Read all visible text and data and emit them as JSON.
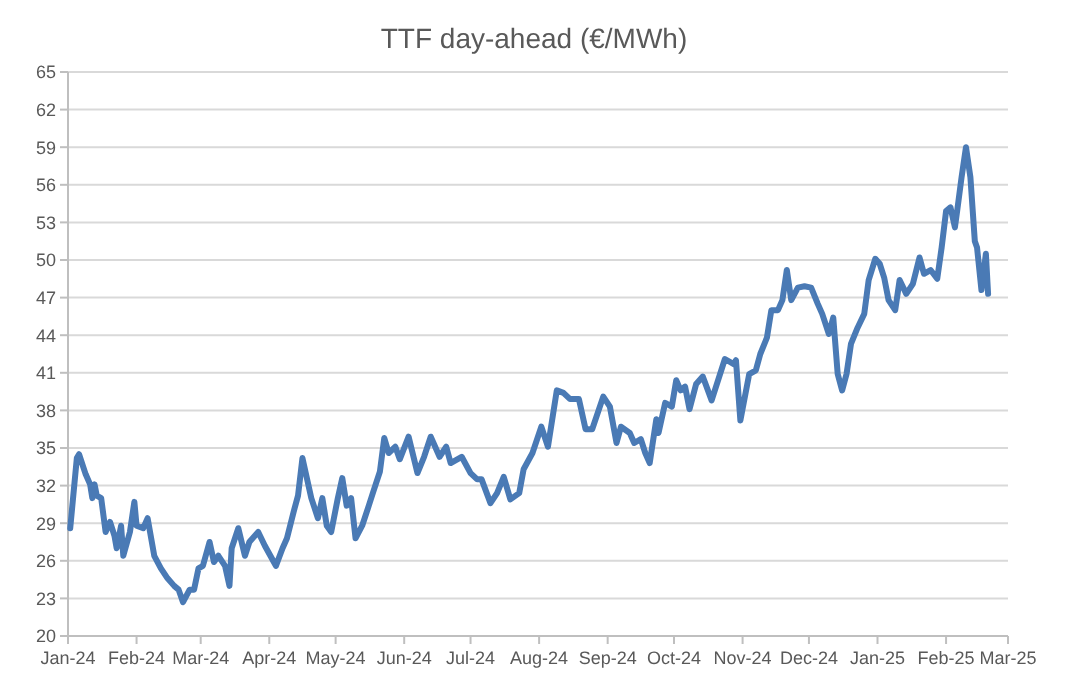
{
  "chart_data": {
    "type": "line",
    "title": "TTF day-ahead (€/MWh)",
    "x": [
      "2024-01-02",
      "2024-01-05",
      "2024-01-06",
      "2024-01-09",
      "2024-01-11",
      "2024-01-12",
      "2024-01-13",
      "2024-01-14",
      "2024-01-16",
      "2024-01-18",
      "2024-01-20",
      "2024-01-22",
      "2024-01-23",
      "2024-01-25",
      "2024-01-26",
      "2024-01-29",
      "2024-01-31",
      "2024-02-01",
      "2024-02-04",
      "2024-02-06",
      "2024-02-09",
      "2024-02-12",
      "2024-02-15",
      "2024-02-18",
      "2024-02-20",
      "2024-02-22",
      "2024-02-25",
      "2024-02-27",
      "2024-02-29",
      "2024-03-02",
      "2024-03-05",
      "2024-03-07",
      "2024-03-09",
      "2024-03-12",
      "2024-03-14",
      "2024-03-15",
      "2024-03-18",
      "2024-03-21",
      "2024-03-23",
      "2024-03-27",
      "2024-03-30",
      "2024-04-04",
      "2024-04-07",
      "2024-04-09",
      "2024-04-12",
      "2024-04-14",
      "2024-04-16",
      "2024-04-18",
      "2024-04-20",
      "2024-04-23",
      "2024-04-25",
      "2024-04-27",
      "2024-04-29",
      "2024-05-02",
      "2024-05-04",
      "2024-05-06",
      "2024-05-08",
      "2024-05-10",
      "2024-05-13",
      "2024-05-16",
      "2024-05-18",
      "2024-05-21",
      "2024-05-23",
      "2024-05-25",
      "2024-05-28",
      "2024-05-30",
      "2024-06-03",
      "2024-06-07",
      "2024-06-10",
      "2024-06-13",
      "2024-06-17",
      "2024-06-20",
      "2024-06-22",
      "2024-06-27",
      "2024-07-01",
      "2024-07-04",
      "2024-07-06",
      "2024-07-10",
      "2024-07-13",
      "2024-07-16",
      "2024-07-19",
      "2024-07-23",
      "2024-07-25",
      "2024-07-29",
      "2024-08-02",
      "2024-08-05",
      "2024-08-09",
      "2024-08-12",
      "2024-08-15",
      "2024-08-19",
      "2024-08-22",
      "2024-08-25",
      "2024-08-30",
      "2024-09-02",
      "2024-09-05",
      "2024-09-07",
      "2024-09-11",
      "2024-09-13",
      "2024-09-16",
      "2024-09-18",
      "2024-09-20",
      "2024-09-23",
      "2024-09-24",
      "2024-09-27",
      "2024-09-30",
      "2024-10-02",
      "2024-10-04",
      "2024-10-06",
      "2024-10-08",
      "2024-10-11",
      "2024-10-14",
      "2024-10-18",
      "2024-10-24",
      "2024-10-28",
      "2024-10-29",
      "2024-10-31",
      "2024-11-04",
      "2024-11-07",
      "2024-11-09",
      "2024-11-12",
      "2024-11-14",
      "2024-11-17",
      "2024-11-19",
      "2024-11-21",
      "2024-11-23",
      "2024-11-26",
      "2024-11-29",
      "2024-12-02",
      "2024-12-05",
      "2024-12-07",
      "2024-12-10",
      "2024-12-12",
      "2024-12-14",
      "2024-12-16",
      "2024-12-18",
      "2024-12-20",
      "2024-12-23",
      "2024-12-26",
      "2024-12-28",
      "2024-12-31",
      "2025-01-02",
      "2025-01-04",
      "2025-01-06",
      "2025-01-09",
      "2025-01-11",
      "2025-01-14",
      "2025-01-17",
      "2025-01-20",
      "2025-01-22",
      "2025-01-25",
      "2025-01-28",
      "2025-01-30",
      "2025-02-01",
      "2025-02-03",
      "2025-02-05",
      "2025-02-06",
      "2025-02-08",
      "2025-02-10",
      "2025-02-12",
      "2025-02-14",
      "2025-02-15",
      "2025-02-17",
      "2025-02-19",
      "2025-02-20"
    ],
    "series": [
      {
        "color": "#4a7ab5",
        "values": [
          28.6,
          34.2,
          34.5,
          32.9,
          32.1,
          31.0,
          32.1,
          31.2,
          31,
          28.3,
          29.1,
          28,
          27,
          28.8,
          26.4,
          28.3,
          30.7,
          28.8,
          28.6,
          29.4,
          26.4,
          25.4,
          24.6,
          24,
          23.7,
          22.7,
          23.7,
          23.7,
          25.4,
          25.6,
          27.5,
          25.9,
          26.4,
          25.6,
          24,
          27,
          28.6,
          26.4,
          27.5,
          28.3,
          27.2,
          25.6,
          27,
          27.8,
          29.9,
          31.2,
          34.2,
          32.6,
          31,
          29.4,
          31,
          28.8,
          28.3,
          31,
          32.6,
          30.4,
          31,
          27.8,
          28.8,
          30.4,
          31.5,
          33.1,
          35.8,
          34.6,
          35.1,
          34.1,
          35.9,
          33,
          34.3,
          35.9,
          34.3,
          35.1,
          33.8,
          34.3,
          33,
          32.5,
          32.5,
          30.6,
          31.4,
          32.7,
          30.9,
          31.4,
          33.3,
          34.6,
          36.7,
          35.1,
          39.6,
          39.4,
          38.9,
          38.9,
          36.5,
          36.5,
          39.1,
          38.3,
          35.4,
          36.7,
          36.2,
          35.4,
          35.7,
          34.6,
          33.8,
          37.3,
          36.2,
          38.6,
          38.3,
          40.4,
          39.6,
          39.9,
          38.1,
          40.1,
          40.7,
          38.8,
          42.1,
          41.7,
          42,
          37.2,
          40.9,
          41.2,
          42.5,
          43.8,
          46,
          46,
          46.8,
          49.2,
          46.8,
          47.8,
          47.9,
          47.8,
          46.5,
          45.7,
          44.1,
          45.4,
          40.9,
          39.6,
          40.9,
          43.3,
          44.6,
          45.7,
          48.4,
          50.1,
          49.7,
          48.6,
          46.8,
          46,
          48.4,
          47.3,
          48.1,
          50.2,
          48.9,
          49.2,
          48.5,
          51,
          53.9,
          54.2,
          52.6,
          53.9,
          56.6,
          59,
          56.6,
          51.5,
          51,
          47.6,
          50.5,
          47.3
        ]
      }
    ],
    "xlim": [
      "2024-01-01",
      "2025-03-01"
    ],
    "xticks": [
      {
        "value": "2024-01-01",
        "label": "Jan-24"
      },
      {
        "value": "2024-02-01",
        "label": "Feb-24"
      },
      {
        "value": "2024-03-01",
        "label": "Mar-24"
      },
      {
        "value": "2024-04-01",
        "label": "Apr-24"
      },
      {
        "value": "2024-05-01",
        "label": "May-24"
      },
      {
        "value": "2024-06-01",
        "label": "Jun-24"
      },
      {
        "value": "2024-07-01",
        "label": "Jul-24"
      },
      {
        "value": "2024-08-01",
        "label": "Aug-24"
      },
      {
        "value": "2024-09-01",
        "label": "Sep-24"
      },
      {
        "value": "2024-10-01",
        "label": "Oct-24"
      },
      {
        "value": "2024-11-01",
        "label": "Nov-24"
      },
      {
        "value": "2024-12-01",
        "label": "Dec-24"
      },
      {
        "value": "2025-01-01",
        "label": "Jan-25"
      },
      {
        "value": "2025-02-01",
        "label": "Feb-25"
      },
      {
        "value": "2025-03-01",
        "label": "Mar-25"
      }
    ],
    "ylim": [
      20,
      65
    ],
    "yticks": [
      20,
      23,
      26,
      29,
      32,
      35,
      38,
      41,
      44,
      47,
      50,
      53,
      56,
      59,
      62,
      65
    ],
    "grid": "y",
    "marker": "none",
    "line_style": "solid"
  }
}
